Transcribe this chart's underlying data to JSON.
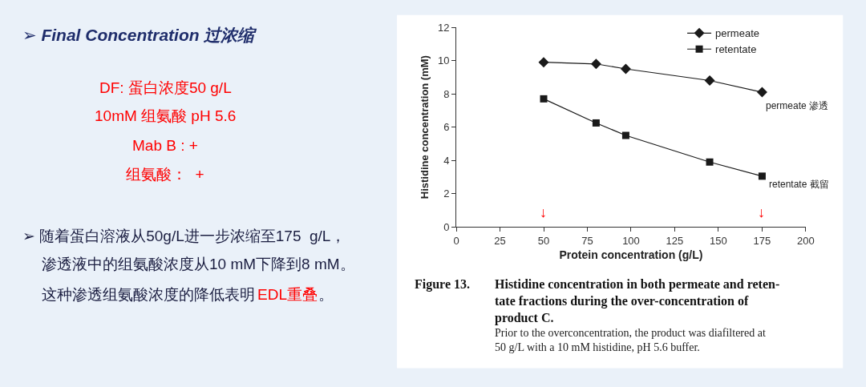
{
  "chart_data": {
    "type": "line",
    "x": [
      50,
      80,
      97,
      145,
      175
    ],
    "series": [
      {
        "name": "permeate",
        "color": "#1a1a1a",
        "marker": "diamond",
        "values": [
          9.9,
          9.8,
          9.5,
          8.8,
          8.1
        ]
      },
      {
        "name": "retentate",
        "color": "#1a1a1a",
        "marker": "square",
        "values": [
          7.7,
          6.25,
          5.5,
          3.9,
          3.05
        ]
      }
    ],
    "xlabel": "Protein concentration (g/L)",
    "ylabel": "Histidine concentration (mM)",
    "xlim": [
      0,
      200
    ],
    "xticks": [
      0,
      25,
      50,
      75,
      100,
      125,
      150,
      175,
      200
    ],
    "ylim": [
      0,
      12
    ],
    "yticks": [
      0,
      2,
      4,
      6,
      8,
      10,
      12
    ],
    "legend": "top right",
    "line_style": "solid",
    "annotations": [
      "➢ Final Concentration 过浓缩",
      "DF: 蛋白浓度50 g/L",
      "10mM 组氨酸 pH 5.6",
      "Mab B : +",
      "组氨酸：  +",
      "➢ 随着蛋白溶液从50g/L进一步浓缩至175  g/L，",
      "渗透液中的组氨酸浓度从10 mM下降到8 mM。",
      "这种渗透组氨酸浓度的降低表明",
      "EDL重叠",
      "。",
      "permeate 渗透",
      "retentate 截留",
      "↓",
      "↓",
      "Figure 13.",
      "Histidine concentration in both permeate and reten-\ntate fractions during the over-concentration of\nproduct C.",
      "Prior to the overconcentration, the product was diafiltered at\n50 g/L with a 10 mM histidine, pH 5.6 buffer."
    ]
  }
}
